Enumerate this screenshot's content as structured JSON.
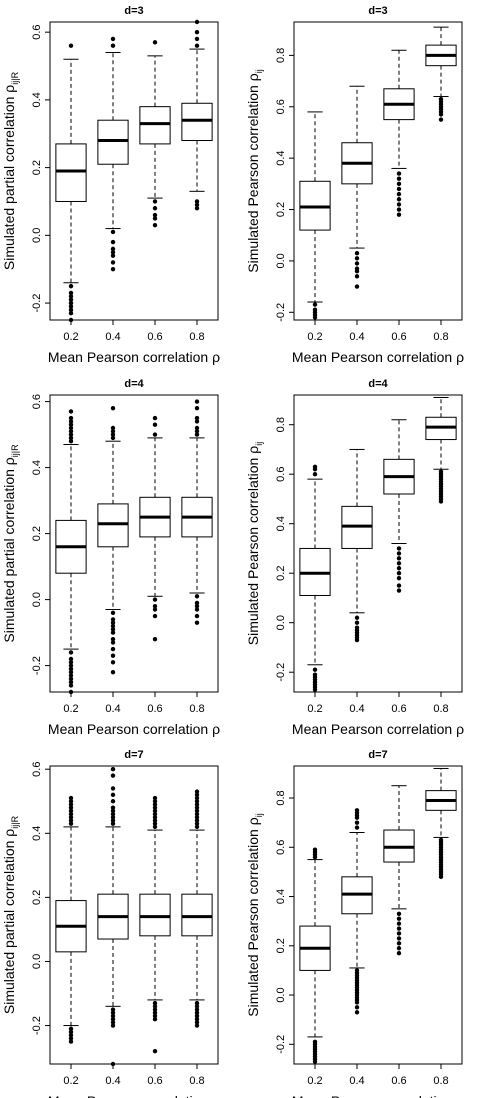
{
  "chart_data": [
    {
      "type": "boxplot",
      "title": "d=3",
      "xlabel": "Mean Pearson correlation ρ",
      "ylabel": "Simulated partial correlation ρ",
      "ylabel_sub": "ij|R",
      "categories": [
        "0.2",
        "0.4",
        "0.6",
        "0.8"
      ],
      "ylim": [
        -0.25,
        0.63
      ],
      "yticks": [
        -0.2,
        0.0,
        0.2,
        0.4,
        0.6
      ],
      "ytick_labels": [
        "-0.2",
        "0.0",
        "0.2",
        "0.4",
        "0.6"
      ],
      "boxes": [
        {
          "whisker_low": -0.14,
          "q1": 0.1,
          "median": 0.19,
          "q3": 0.27,
          "whisker_high": 0.52,
          "outliers_low": [
            -0.15,
            -0.17,
            -0.18,
            -0.19,
            -0.2,
            -0.21,
            -0.22,
            -0.23,
            -0.25
          ],
          "outliers_high": [
            0.56
          ]
        },
        {
          "whisker_low": 0.02,
          "q1": 0.21,
          "median": 0.28,
          "q3": 0.34,
          "whisker_high": 0.54,
          "outliers_low": [
            0.01,
            -0.02,
            -0.04,
            -0.05,
            -0.06,
            -0.08,
            -0.1
          ],
          "outliers_high": [
            0.56,
            0.58
          ]
        },
        {
          "whisker_low": 0.11,
          "q1": 0.27,
          "median": 0.33,
          "q3": 0.38,
          "whisker_high": 0.53,
          "outliers_low": [
            0.1,
            0.08,
            0.06,
            0.05,
            0.03
          ],
          "outliers_high": [
            0.57
          ]
        },
        {
          "whisker_low": 0.13,
          "q1": 0.28,
          "median": 0.34,
          "q3": 0.39,
          "whisker_high": 0.55,
          "outliers_low": [
            0.1,
            0.09,
            0.08
          ],
          "outliers_high": [
            0.56,
            0.58,
            0.6,
            0.63
          ]
        }
      ]
    },
    {
      "type": "boxplot",
      "title": "d=3",
      "xlabel": "Mean Pearson correlation ρ",
      "ylabel": "Simulated Pearson correlation ρ",
      "ylabel_sub": "ij",
      "categories": [
        "0.2",
        "0.4",
        "0.6",
        "0.8"
      ],
      "ylim": [
        -0.23,
        0.93
      ],
      "yticks": [
        -0.2,
        0.0,
        0.2,
        0.4,
        0.6,
        0.8
      ],
      "ytick_labels": [
        "-0.2",
        "0.0",
        "0.2",
        "0.4",
        "0.6",
        "0.8"
      ],
      "boxes": [
        {
          "whisker_low": -0.16,
          "q1": 0.12,
          "median": 0.21,
          "q3": 0.31,
          "whisker_high": 0.58,
          "outliers_low": [
            -0.17,
            -0.19,
            -0.2,
            -0.21,
            -0.22
          ],
          "outliers_high": []
        },
        {
          "whisker_low": 0.05,
          "q1": 0.3,
          "median": 0.38,
          "q3": 0.46,
          "whisker_high": 0.68,
          "outliers_low": [
            0.03,
            0.01,
            -0.01,
            -0.03,
            -0.04,
            -0.06,
            -0.1
          ],
          "outliers_high": []
        },
        {
          "whisker_low": 0.36,
          "q1": 0.55,
          "median": 0.61,
          "q3": 0.67,
          "whisker_high": 0.82,
          "outliers_low": [
            0.34,
            0.32,
            0.3,
            0.28,
            0.26,
            0.24,
            0.22,
            0.2,
            0.18
          ],
          "outliers_high": []
        },
        {
          "whisker_low": 0.64,
          "q1": 0.76,
          "median": 0.8,
          "q3": 0.84,
          "whisker_high": 0.91,
          "outliers_low": [
            0.63,
            0.62,
            0.61,
            0.6,
            0.59,
            0.58,
            0.57,
            0.55
          ],
          "outliers_high": []
        }
      ]
    },
    {
      "type": "boxplot",
      "title": "d=4",
      "xlabel": "Mean Pearson correlation ρ",
      "ylabel": "Simulated partial correlation ρ",
      "ylabel_sub": "ij|R",
      "categories": [
        "0.2",
        "0.4",
        "0.6",
        "0.8"
      ],
      "ylim": [
        -0.28,
        0.62
      ],
      "yticks": [
        -0.2,
        0.0,
        0.2,
        0.4,
        0.6
      ],
      "ytick_labels": [
        "-0.2",
        "0.0",
        "0.2",
        "0.4",
        "0.6"
      ],
      "boxes": [
        {
          "whisker_low": -0.15,
          "q1": 0.08,
          "median": 0.16,
          "q3": 0.24,
          "whisker_high": 0.47,
          "outliers_low": [
            -0.16,
            -0.18,
            -0.19,
            -0.2,
            -0.21,
            -0.22,
            -0.23,
            -0.24,
            -0.25,
            -0.26,
            -0.28
          ],
          "outliers_high": [
            0.48,
            0.49,
            0.5,
            0.51,
            0.52,
            0.53,
            0.54,
            0.55,
            0.57
          ]
        },
        {
          "whisker_low": -0.03,
          "q1": 0.16,
          "median": 0.23,
          "q3": 0.29,
          "whisker_high": 0.48,
          "outliers_low": [
            -0.04,
            -0.06,
            -0.07,
            -0.08,
            -0.09,
            -0.1,
            -0.12,
            -0.13,
            -0.15,
            -0.17,
            -0.19,
            -0.22
          ],
          "outliers_high": [
            0.49,
            0.5,
            0.51,
            0.52,
            0.58
          ]
        },
        {
          "whisker_low": 0.01,
          "q1": 0.19,
          "median": 0.25,
          "q3": 0.31,
          "whisker_high": 0.49,
          "outliers_low": [
            0.0,
            -0.02,
            -0.03,
            -0.05,
            -0.12
          ],
          "outliers_high": [
            0.5,
            0.53,
            0.55
          ]
        },
        {
          "whisker_low": 0.02,
          "q1": 0.19,
          "median": 0.25,
          "q3": 0.31,
          "whisker_high": 0.49,
          "outliers_low": [
            0.01,
            -0.01,
            -0.02,
            -0.03,
            -0.05,
            -0.07
          ],
          "outliers_high": [
            0.5,
            0.51,
            0.52,
            0.54,
            0.55,
            0.58,
            0.6
          ]
        }
      ]
    },
    {
      "type": "boxplot",
      "title": "d=4",
      "xlabel": "Mean Pearson correlation ρ",
      "ylabel": "Simulated Pearson correlation ρ",
      "ylabel_sub": "ij",
      "categories": [
        "0.2",
        "0.4",
        "0.6",
        "0.8"
      ],
      "ylim": [
        -0.28,
        0.92
      ],
      "yticks": [
        -0.2,
        0.0,
        0.2,
        0.4,
        0.6,
        0.8
      ],
      "ytick_labels": [
        "-0.2",
        "0.0",
        "0.2",
        "0.4",
        "0.6",
        "0.8"
      ],
      "boxes": [
        {
          "whisker_low": -0.17,
          "q1": 0.11,
          "median": 0.2,
          "q3": 0.3,
          "whisker_high": 0.58,
          "outliers_low": [
            -0.19,
            -0.21,
            -0.22,
            -0.23,
            -0.24,
            -0.25,
            -0.26,
            -0.27
          ],
          "outliers_high": [
            0.6,
            0.62,
            0.63
          ]
        },
        {
          "whisker_low": 0.04,
          "q1": 0.3,
          "median": 0.39,
          "q3": 0.47,
          "whisker_high": 0.7,
          "outliers_low": [
            0.02,
            0.0,
            -0.02,
            -0.03,
            -0.04,
            -0.05,
            -0.06,
            -0.07
          ],
          "outliers_high": []
        },
        {
          "whisker_low": 0.32,
          "q1": 0.52,
          "median": 0.59,
          "q3": 0.66,
          "whisker_high": 0.82,
          "outliers_low": [
            0.3,
            0.28,
            0.26,
            0.24,
            0.22,
            0.2,
            0.18,
            0.15,
            0.13
          ],
          "outliers_high": []
        },
        {
          "whisker_low": 0.62,
          "q1": 0.74,
          "median": 0.79,
          "q3": 0.83,
          "whisker_high": 0.91,
          "outliers_low": [
            0.61,
            0.6,
            0.59,
            0.58,
            0.57,
            0.56,
            0.55,
            0.54,
            0.53,
            0.52,
            0.51,
            0.5,
            0.49
          ],
          "outliers_high": []
        }
      ]
    },
    {
      "type": "boxplot",
      "title": "d=7",
      "xlabel": "Mean Pearson correlation ρ",
      "ylabel": "Simulated partial correlation ρ",
      "ylabel_sub": "ij|R",
      "categories": [
        "0.2",
        "0.4",
        "0.6",
        "0.8"
      ],
      "ylim": [
        -0.32,
        0.61
      ],
      "yticks": [
        -0.2,
        0.0,
        0.2,
        0.4,
        0.6
      ],
      "ytick_labels": [
        "-0.2",
        "0.0",
        "0.2",
        "0.4",
        "0.6"
      ],
      "boxes": [
        {
          "whisker_low": -0.2,
          "q1": 0.03,
          "median": 0.11,
          "q3": 0.19,
          "whisker_high": 0.42,
          "outliers_low": [
            -0.21,
            -0.22,
            -0.23,
            -0.24,
            -0.25
          ],
          "outliers_high": [
            0.43,
            0.44,
            0.45,
            0.46,
            0.47,
            0.48,
            0.49,
            0.5,
            0.51
          ]
        },
        {
          "whisker_low": -0.14,
          "q1": 0.07,
          "median": 0.14,
          "q3": 0.21,
          "whisker_high": 0.42,
          "outliers_low": [
            -0.15,
            -0.16,
            -0.17,
            -0.18,
            -0.19,
            -0.2,
            -0.32
          ],
          "outliers_high": [
            0.43,
            0.44,
            0.45,
            0.46,
            0.47,
            0.48,
            0.5,
            0.52,
            0.54,
            0.58,
            0.6
          ]
        },
        {
          "whisker_low": -0.12,
          "q1": 0.08,
          "median": 0.14,
          "q3": 0.21,
          "whisker_high": 0.41,
          "outliers_low": [
            -0.13,
            -0.14,
            -0.15,
            -0.16,
            -0.17,
            -0.18,
            -0.28
          ],
          "outliers_high": [
            0.42,
            0.43,
            0.44,
            0.45,
            0.46,
            0.47,
            0.48,
            0.49,
            0.5,
            0.51
          ]
        },
        {
          "whisker_low": -0.12,
          "q1": 0.08,
          "median": 0.14,
          "q3": 0.21,
          "whisker_high": 0.41,
          "outliers_low": [
            -0.13,
            -0.14,
            -0.15,
            -0.16,
            -0.17,
            -0.18,
            -0.19,
            -0.2
          ],
          "outliers_high": [
            0.42,
            0.43,
            0.44,
            0.45,
            0.46,
            0.47,
            0.48,
            0.49,
            0.5,
            0.51,
            0.52,
            0.53
          ]
        }
      ]
    },
    {
      "type": "boxplot",
      "title": "d=7",
      "xlabel": "Mean Pearson correlation ρ",
      "ylabel": "Simulated Pearson correlation ρ",
      "ylabel_sub": "ij",
      "categories": [
        "0.2",
        "0.4",
        "0.6",
        "0.8"
      ],
      "ylim": [
        -0.28,
        0.93
      ],
      "yticks": [
        -0.2,
        0.0,
        0.2,
        0.4,
        0.6,
        0.8
      ],
      "ytick_labels": [
        "-0.2",
        "0.0",
        "0.2",
        "0.4",
        "0.6",
        "0.8"
      ],
      "boxes": [
        {
          "whisker_low": -0.17,
          "q1": 0.1,
          "median": 0.19,
          "q3": 0.28,
          "whisker_high": 0.55,
          "outliers_low": [
            -0.19,
            -0.2,
            -0.21,
            -0.22,
            -0.23,
            -0.24,
            -0.25,
            -0.26,
            -0.27
          ],
          "outliers_high": [
            0.56,
            0.57,
            0.58,
            0.59
          ]
        },
        {
          "whisker_low": 0.11,
          "q1": 0.33,
          "median": 0.41,
          "q3": 0.48,
          "whisker_high": 0.66,
          "outliers_low": [
            0.1,
            0.09,
            0.08,
            0.07,
            0.06,
            0.05,
            0.04,
            0.03,
            0.02,
            0.01,
            0.0,
            -0.01,
            -0.02,
            -0.03,
            -0.05,
            -0.07
          ],
          "outliers_high": [
            0.68,
            0.7,
            0.72,
            0.73,
            0.74,
            0.75
          ]
        },
        {
          "whisker_low": 0.35,
          "q1": 0.54,
          "median": 0.6,
          "q3": 0.67,
          "whisker_high": 0.85,
          "outliers_low": [
            0.33,
            0.31,
            0.29,
            0.27,
            0.25,
            0.23,
            0.21,
            0.19,
            0.17
          ],
          "outliers_high": []
        },
        {
          "whisker_low": 0.64,
          "q1": 0.75,
          "median": 0.79,
          "q3": 0.83,
          "whisker_high": 0.92,
          "outliers_low": [
            0.63,
            0.62,
            0.61,
            0.6,
            0.59,
            0.58,
            0.57,
            0.56,
            0.55,
            0.54,
            0.53,
            0.52,
            0.51,
            0.5,
            0.49,
            0.48
          ],
          "outliers_high": []
        }
      ]
    }
  ]
}
